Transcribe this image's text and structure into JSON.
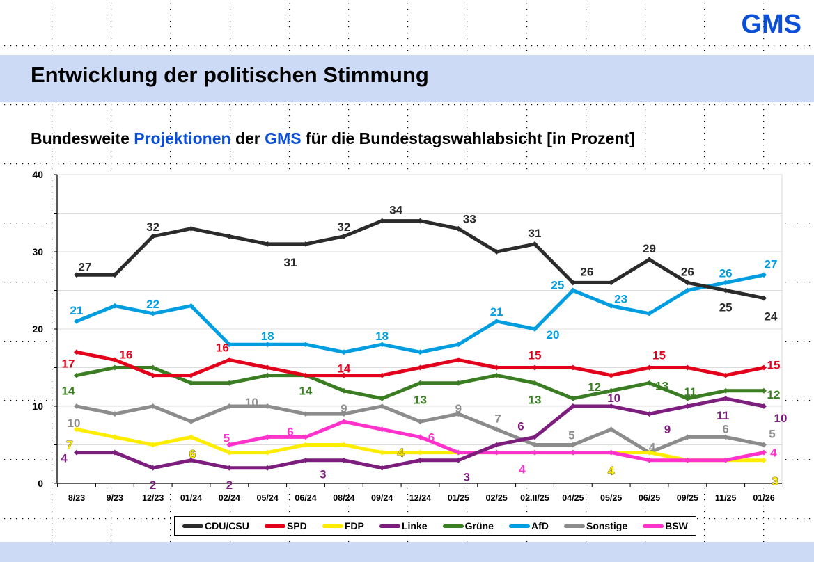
{
  "header": {
    "logo": "GMS",
    "title": "Entwicklung der politischen Stimmung",
    "subtitle_parts": {
      "p1": "Bundesweite ",
      "p2": "Projektionen",
      "p3": " der ",
      "p4": "GMS",
      "p5": " für die Bundestagswahlabsicht [in Prozent]"
    }
  },
  "colors": {
    "brand_blue": "#0a4fd6",
    "band": "#ccdaf5"
  },
  "chart_data": {
    "type": "line",
    "title": "Bundesweite Projektionen der GMS für die Bundestagswahlabsicht [in Prozent]",
    "xlabel": "",
    "ylabel": "",
    "ylim": [
      0,
      40
    ],
    "yticks": [
      0,
      10,
      20,
      30,
      40
    ],
    "yminor": [
      5,
      15,
      25,
      35
    ],
    "grid": true,
    "legend": "bottom",
    "categories": [
      "8/23",
      "9/23",
      "12/23",
      "01/24",
      "02/24",
      "05/24",
      "06/24",
      "08/24",
      "09/24",
      "12/24",
      "01/25",
      "02/25",
      "02.II/25",
      "04/25",
      "05/25",
      "06/25",
      "09/25",
      "11/25",
      "01/26"
    ],
    "series": [
      {
        "name": "CDU/CSU",
        "color": "#2b2b2b",
        "values": [
          27,
          27,
          32,
          33,
          32,
          31,
          31,
          32,
          34,
          34,
          33,
          30,
          31,
          26,
          26,
          29,
          26,
          25,
          24
        ]
      },
      {
        "name": "SPD",
        "color": "#e2001a",
        "values": [
          17,
          16,
          14,
          14,
          16,
          15,
          14,
          14,
          14,
          15,
          16,
          15,
          15,
          15,
          14,
          15,
          15,
          14,
          15
        ]
      },
      {
        "name": "FDP",
        "color": "#ffed00",
        "values": [
          7,
          6,
          5,
          6,
          4,
          4,
          5,
          5,
          4,
          4,
          4,
          4,
          4,
          4,
          4,
          4,
          3,
          3,
          3
        ]
      },
      {
        "name": "Linke",
        "color": "#7d1e7e",
        "values": [
          4,
          4,
          2,
          3,
          2,
          2,
          3,
          3,
          2,
          3,
          3,
          5,
          6,
          10,
          10,
          9,
          10,
          11,
          10
        ]
      },
      {
        "name": "Grüne",
        "color": "#3a7d22",
        "values": [
          14,
          15,
          15,
          13,
          13,
          14,
          14,
          12,
          11,
          13,
          13,
          14,
          13,
          11,
          12,
          13,
          11,
          12,
          12
        ]
      },
      {
        "name": "AfD",
        "color": "#009ee0",
        "values": [
          21,
          23,
          22,
          23,
          18,
          18,
          18,
          17,
          18,
          17,
          18,
          21,
          20,
          25,
          23,
          22,
          25,
          26,
          27
        ]
      },
      {
        "name": "Sonstige",
        "color": "#8c8c8c",
        "values": [
          10,
          9,
          10,
          8,
          10,
          10,
          9,
          9,
          10,
          8,
          9,
          7,
          5,
          5,
          7,
          4,
          6,
          6,
          5
        ]
      },
      {
        "name": "BSW",
        "color": "#ff33cc",
        "values": [
          null,
          null,
          null,
          null,
          5,
          6,
          6,
          8,
          7,
          6,
          4,
          4,
          4,
          4,
          4,
          3,
          3,
          3,
          4
        ]
      }
    ],
    "annotations": [
      {
        "series": "CDU/CSU",
        "category": "8/23",
        "text": "27"
      },
      {
        "series": "CDU/CSU",
        "category": "12/23",
        "text": "32"
      },
      {
        "series": "CDU/CSU",
        "category": "06/24",
        "text": "31"
      },
      {
        "series": "CDU/CSU",
        "category": "08/24",
        "text": "32"
      },
      {
        "series": "CDU/CSU",
        "category": "09/24",
        "text": "34"
      },
      {
        "series": "CDU/CSU",
        "category": "01/25",
        "text": "33"
      },
      {
        "series": "CDU/CSU",
        "category": "02.II/25",
        "text": "31"
      },
      {
        "series": "CDU/CSU",
        "category": "04/25",
        "text": "26"
      },
      {
        "series": "CDU/CSU",
        "category": "06/25",
        "text": "29"
      },
      {
        "series": "CDU/CSU",
        "category": "09/25",
        "text": "26"
      },
      {
        "series": "CDU/CSU",
        "category": "11/25",
        "text": "25"
      },
      {
        "series": "CDU/CSU",
        "category": "01/26",
        "text": "24"
      },
      {
        "series": "AfD",
        "category": "8/23",
        "text": "21"
      },
      {
        "series": "AfD",
        "category": "12/23",
        "text": "22"
      },
      {
        "series": "AfD",
        "category": "05/24",
        "text": "18"
      },
      {
        "series": "AfD",
        "category": "09/24",
        "text": "18"
      },
      {
        "series": "AfD",
        "category": "02/25",
        "text": "21"
      },
      {
        "series": "AfD",
        "category": "02.II/25",
        "text": "20"
      },
      {
        "series": "AfD",
        "category": "04/25",
        "text": "25"
      },
      {
        "series": "AfD",
        "category": "05/25",
        "text": "23"
      },
      {
        "series": "AfD",
        "category": "11/25",
        "text": "26"
      },
      {
        "series": "AfD",
        "category": "01/26",
        "text": "27"
      },
      {
        "series": "SPD",
        "category": "8/23",
        "text": "17"
      },
      {
        "series": "SPD",
        "category": "9/23",
        "text": "16"
      },
      {
        "series": "SPD",
        "category": "02/24",
        "text": "16"
      },
      {
        "series": "SPD",
        "category": "08/24",
        "text": "14"
      },
      {
        "series": "SPD",
        "category": "02.II/25",
        "text": "15"
      },
      {
        "series": "SPD",
        "category": "06/25",
        "text": "15"
      },
      {
        "series": "SPD",
        "category": "01/26",
        "text": "15"
      },
      {
        "series": "Grüne",
        "category": "8/23",
        "text": "14"
      },
      {
        "series": "Grüne",
        "category": "06/24",
        "text": "14"
      },
      {
        "series": "Grüne",
        "category": "12/24",
        "text": "13"
      },
      {
        "series": "Grüne",
        "category": "02.II/25",
        "text": "13"
      },
      {
        "series": "Grüne",
        "category": "05/25",
        "text": "12"
      },
      {
        "series": "Grüne",
        "category": "06/25",
        "text": "13"
      },
      {
        "series": "Grüne",
        "category": "09/25",
        "text": "11"
      },
      {
        "series": "Grüne",
        "category": "01/26",
        "text": "12"
      },
      {
        "series": "Sonstige",
        "category": "8/23",
        "text": "10"
      },
      {
        "series": "Sonstige",
        "category": "02/24",
        "text": "10"
      },
      {
        "series": "Sonstige",
        "category": "08/24",
        "text": "9"
      },
      {
        "series": "Sonstige",
        "category": "01/25",
        "text": "9"
      },
      {
        "series": "Sonstige",
        "category": "02/25",
        "text": "7"
      },
      {
        "series": "Sonstige",
        "category": "04/25",
        "text": "5"
      },
      {
        "series": "Sonstige",
        "category": "06/25",
        "text": "4"
      },
      {
        "series": "Sonstige",
        "category": "11/25",
        "text": "6"
      },
      {
        "series": "Sonstige",
        "category": "01/26",
        "text": "5"
      },
      {
        "series": "FDP",
        "category": "8/23",
        "text": "7"
      },
      {
        "series": "FDP",
        "category": "01/24",
        "text": "6"
      },
      {
        "series": "FDP",
        "category": "12/24",
        "text": "4"
      },
      {
        "series": "FDP",
        "category": "05/25",
        "text": "4"
      },
      {
        "series": "FDP",
        "category": "01/26",
        "text": "3"
      },
      {
        "series": "Linke",
        "category": "8/23",
        "text": "4"
      },
      {
        "series": "Linke",
        "category": "12/23",
        "text": "2"
      },
      {
        "series": "Linke",
        "category": "02/24",
        "text": "2"
      },
      {
        "series": "Linke",
        "category": "08/24",
        "text": "3"
      },
      {
        "series": "Linke",
        "category": "01/25",
        "text": "3"
      },
      {
        "series": "Linke",
        "category": "02.II/25",
        "text": "6"
      },
      {
        "series": "Linke",
        "category": "05/25",
        "text": "10"
      },
      {
        "series": "Linke",
        "category": "06/25",
        "text": "9"
      },
      {
        "series": "Linke",
        "category": "11/25",
        "text": "11"
      },
      {
        "series": "Linke",
        "category": "01/26",
        "text": "10"
      },
      {
        "series": "BSW",
        "category": "02/24",
        "text": "5"
      },
      {
        "series": "BSW",
        "category": "06/24",
        "text": "6"
      },
      {
        "series": "BSW",
        "category": "12/24",
        "text": "6"
      },
      {
        "series": "BSW",
        "category": "02.II/25",
        "text": "4"
      },
      {
        "series": "BSW",
        "category": "01/26",
        "text": "4"
      }
    ]
  }
}
